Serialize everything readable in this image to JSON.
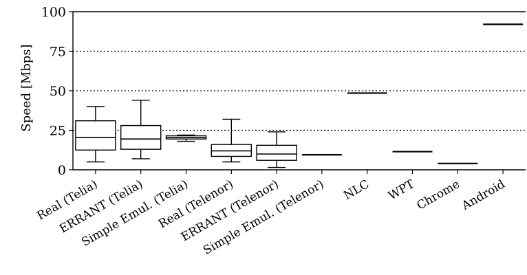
{
  "chart_data": {
    "type": "boxplot",
    "ylabel": "Speed [Mbps]",
    "ylim": [
      0,
      100
    ],
    "yticks": [
      0,
      25,
      50,
      75,
      100
    ],
    "grid": "horizontal dotted at 50, 75 and 25",
    "categories": [
      "Real (Telia)",
      "ERRANT (Telia)",
      "Simple Emul. (Telia)",
      "Real (Telenor)",
      "ERRANT (Telenor)",
      "Simple Emul. (Telenor)",
      "NLC",
      "WPT",
      "Chrome",
      "Android"
    ],
    "boxes": [
      {
        "category": "Real (Telia)",
        "whisker_low": 5,
        "q1": 12.5,
        "median": 20.5,
        "q3": 31,
        "whisker_high": 40
      },
      {
        "category": "ERRANT (Telia)",
        "whisker_low": 7,
        "q1": 13,
        "median": 19.5,
        "q3": 28,
        "whisker_high": 44
      },
      {
        "category": "Simple Emul. (Telia)",
        "whisker_low": 18,
        "q1": 19.5,
        "median": 20.5,
        "q3": 21.5,
        "whisker_high": 22
      },
      {
        "category": "Real (Telenor)",
        "whisker_low": 5,
        "q1": 8.5,
        "median": 12,
        "q3": 16,
        "whisker_high": 32
      },
      {
        "category": "ERRANT (Telenor)",
        "whisker_low": 1.5,
        "q1": 6,
        "median": 10,
        "q3": 15.5,
        "whisker_high": 24
      },
      {
        "category": "Simple Emul. (Telenor)",
        "whisker_low": 9.5,
        "q1": 9.5,
        "median": 9.5,
        "q3": 9.5,
        "whisker_high": 9.5
      },
      {
        "category": "NLC",
        "whisker_low": 48.5,
        "q1": 48.5,
        "median": 48.5,
        "q3": 48.5,
        "whisker_high": 48.5
      },
      {
        "category": "WPT",
        "whisker_low": 11.5,
        "q1": 11.5,
        "median": 11.5,
        "q3": 11.5,
        "whisker_high": 11.5
      },
      {
        "category": "Chrome",
        "whisker_low": 4,
        "q1": 4,
        "median": 4,
        "q3": 4,
        "whisker_high": 4
      },
      {
        "category": "Android",
        "whisker_low": 92,
        "q1": 92,
        "median": 92,
        "q3": 92,
        "whisker_high": 92
      }
    ]
  }
}
